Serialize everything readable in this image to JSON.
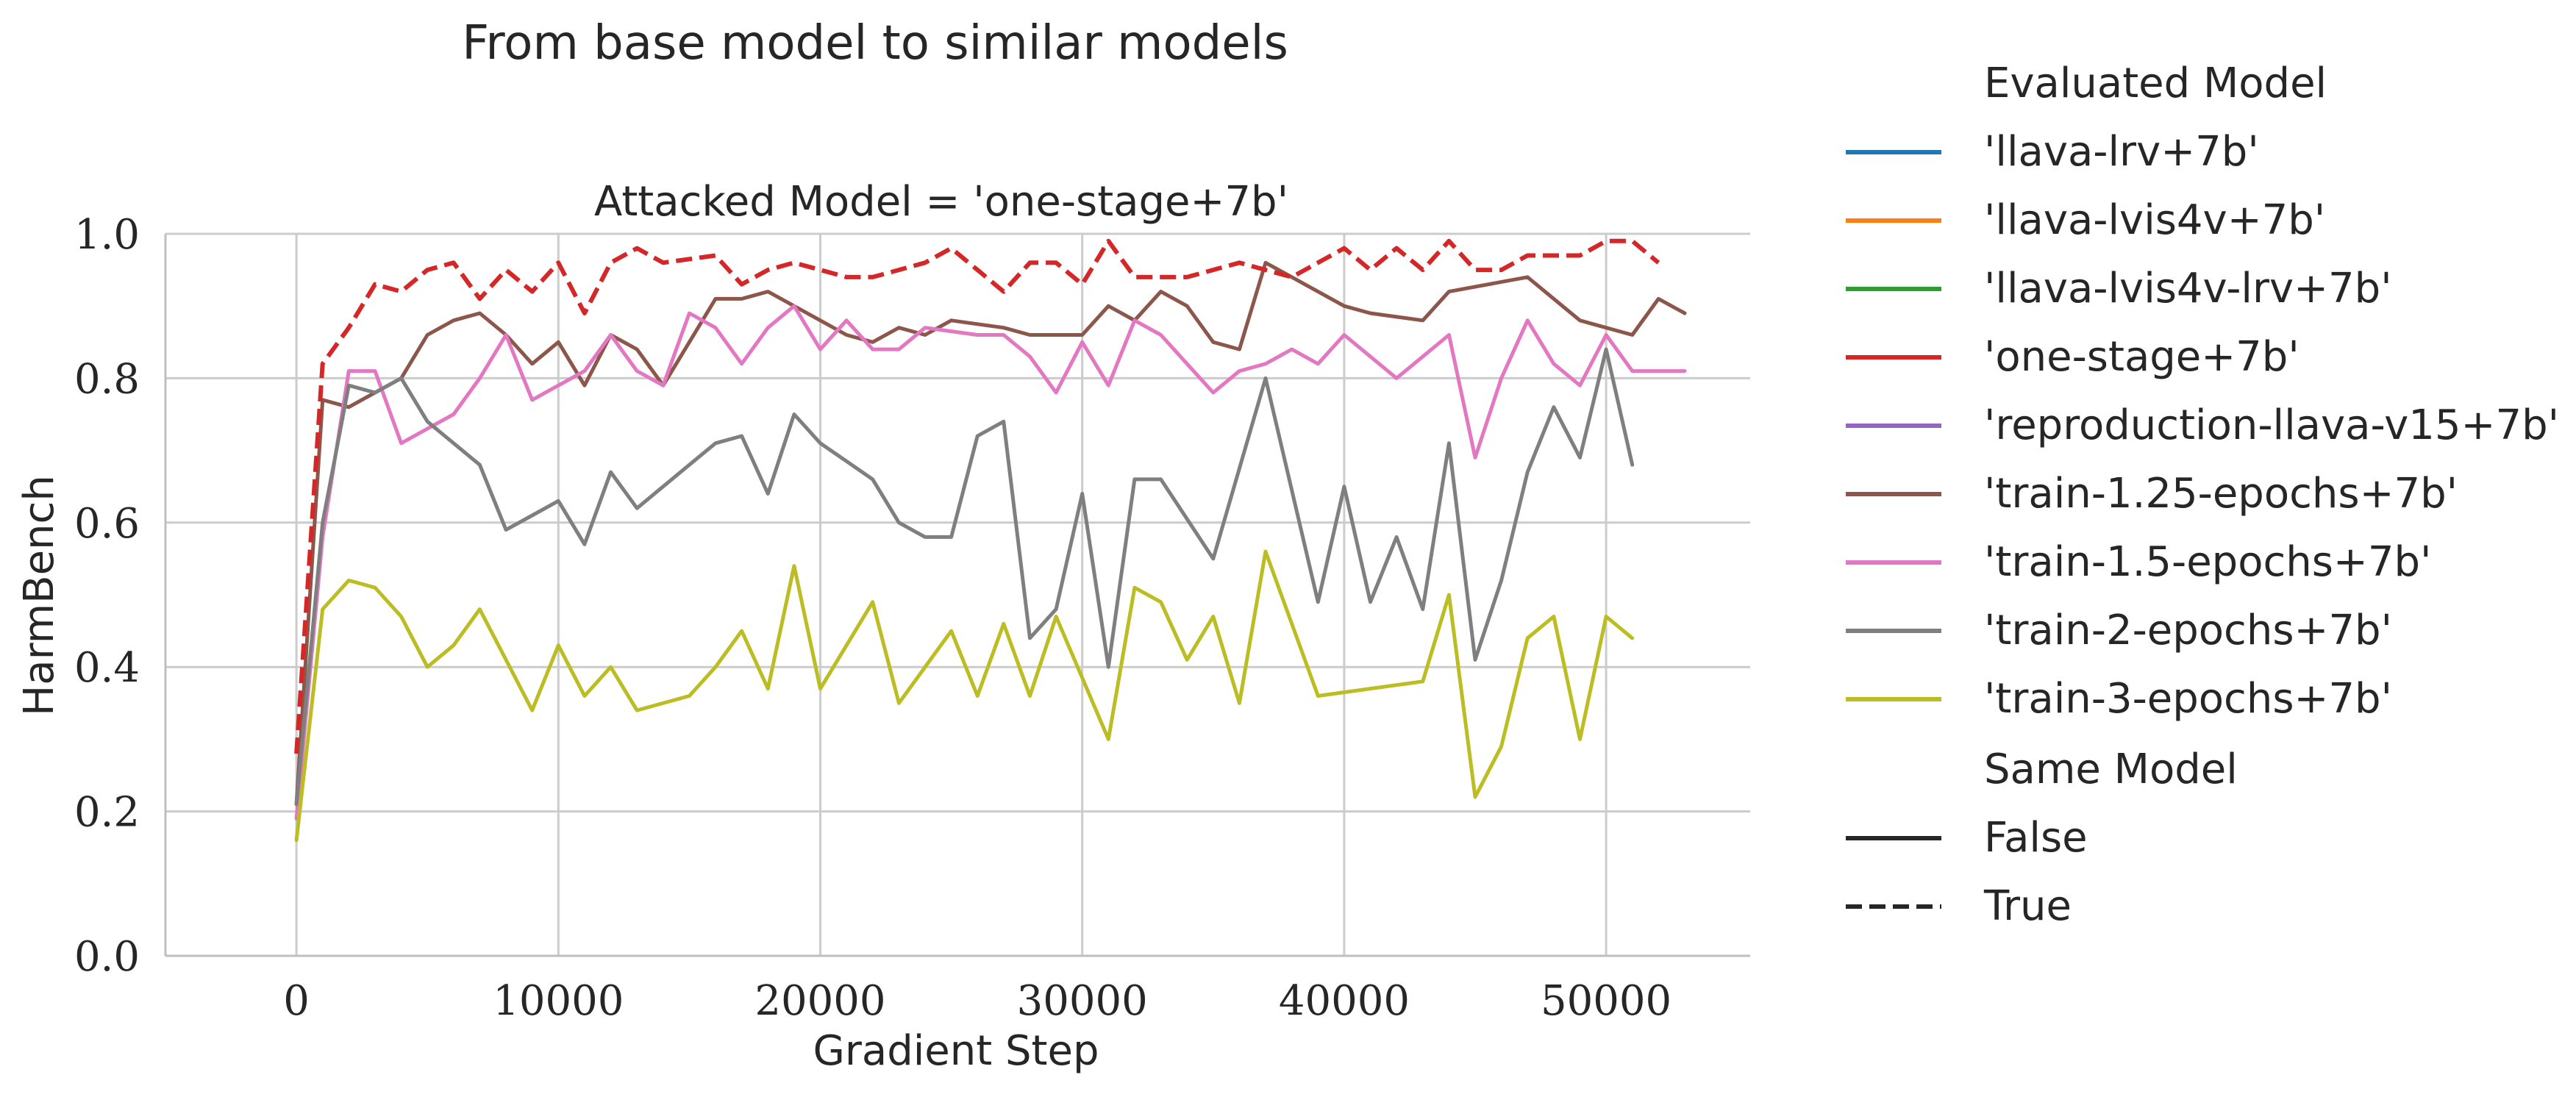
{
  "chart_data": {
    "type": "line",
    "title": "From base model to similar models",
    "subplot_title": "Attacked Model = 'one-stage+7b'",
    "xlabel": "Gradient Step",
    "ylabel": "HarmBench",
    "xlim": [
      -5000,
      55500
    ],
    "ylim": [
      0.0,
      1.0
    ],
    "xticks": [
      0,
      10000,
      20000,
      30000,
      40000,
      50000
    ],
    "yticks": [
      0.0,
      0.2,
      0.4,
      0.6,
      0.8,
      1.0
    ],
    "xtick_labels": [
      "0",
      "10000",
      "20000",
      "30000",
      "40000",
      "50000"
    ],
    "ytick_labels": [
      "0.0",
      "0.2",
      "0.4",
      "0.6",
      "0.8",
      "1.0"
    ],
    "grid": true,
    "legend_placement": "right, outside plot",
    "legend": {
      "hue_title": "Evaluated Model",
      "hue_entries": [
        {
          "label": "'llava-lrv+7b'",
          "color": "#1f77b4"
        },
        {
          "label": "'llava-lvis4v+7b'",
          "color": "#ff7f0e"
        },
        {
          "label": "'llava-lvis4v-lrv+7b'",
          "color": "#2ca02c"
        },
        {
          "label": "'one-stage+7b'",
          "color": "#d62728"
        },
        {
          "label": "'reproduction-llava-v15+7b'",
          "color": "#9467bd"
        },
        {
          "label": "'train-1.25-epochs+7b'",
          "color": "#8c564b"
        },
        {
          "label": "'train-1.5-epochs+7b'",
          "color": "#e377c2"
        },
        {
          "label": "'train-2-epochs+7b'",
          "color": "#7f7f7f"
        },
        {
          "label": "'train-3-epochs+7b'",
          "color": "#bcbd22"
        }
      ],
      "style_title": "Same Model",
      "style_entries": [
        {
          "label": "False",
          "dashed": false
        },
        {
          "label": "True",
          "dashed": true
        }
      ]
    },
    "series": [
      {
        "name": "'one-stage+7b'",
        "color": "#d62728",
        "dashed": true,
        "x": [
          0,
          1000,
          2000,
          3000,
          4000,
          5000,
          6000,
          7000,
          8000,
          9000,
          10000,
          11000,
          12000,
          13000,
          14000,
          15000,
          16000,
          17000,
          18000,
          19000,
          20000,
          21000,
          22000,
          23000,
          24000,
          25000,
          26000,
          27000,
          28000,
          29000,
          30000,
          31000,
          32000,
          33000,
          34000,
          35000,
          36000,
          37000,
          38000,
          39000,
          40000,
          41000,
          42000,
          43000,
          44000,
          45000,
          46000,
          47000,
          48000,
          49000,
          50000,
          51000,
          52000
        ],
        "y": [
          0.28,
          0.82,
          0.87,
          0.93,
          0.92,
          0.95,
          0.96,
          0.91,
          0.95,
          0.92,
          0.96,
          0.89,
          0.96,
          0.98,
          0.96,
          0.965,
          0.97,
          0.93,
          0.95,
          0.96,
          0.95,
          0.94,
          0.94,
          0.95,
          0.96,
          0.98,
          0.95,
          0.92,
          0.96,
          0.96,
          0.93,
          0.99,
          0.94,
          0.94,
          0.94,
          0.95,
          0.96,
          0.95,
          0.94,
          0.96,
          0.98,
          0.95,
          0.98,
          0.95,
          0.99,
          0.95,
          0.95,
          0.97,
          0.97,
          0.97,
          0.99,
          0.99,
          0.96
        ]
      },
      {
        "name": "'train-1.25-epochs+7b'",
        "color": "#8c564b",
        "dashed": false,
        "x": [
          0,
          1000,
          2000,
          3000,
          4000,
          5000,
          6000,
          7000,
          8000,
          9000,
          10000,
          11000,
          12000,
          13000,
          14000,
          15000,
          16000,
          17000,
          18000,
          19000,
          20000,
          21000,
          22000,
          23000,
          24000,
          25000,
          26000,
          27000,
          28000,
          29000,
          30000,
          31000,
          32000,
          33000,
          34000,
          35000,
          36000,
          37000,
          38000,
          39000,
          40000,
          41000,
          42000,
          43000,
          44000,
          47000,
          48000,
          49000,
          50000,
          51000,
          52000,
          53000
        ],
        "y": [
          0.21,
          0.77,
          0.76,
          0.78,
          0.8,
          0.86,
          0.88,
          0.89,
          0.86,
          0.82,
          0.85,
          0.79,
          0.86,
          0.84,
          0.79,
          0.85,
          0.91,
          0.91,
          0.92,
          0.9,
          0.88,
          0.86,
          0.85,
          0.87,
          0.86,
          0.88,
          0.875,
          0.87,
          0.86,
          0.86,
          0.86,
          0.9,
          0.88,
          0.92,
          0.9,
          0.85,
          0.84,
          0.96,
          0.94,
          0.92,
          0.9,
          0.89,
          0.885,
          0.88,
          0.92,
          0.94,
          0.91,
          0.88,
          0.87,
          0.86,
          0.91,
          0.89
        ]
      },
      {
        "name": "'train-1.5-epochs+7b'",
        "color": "#e377c2",
        "dashed": false,
        "x": [
          0,
          1000,
          2000,
          3000,
          4000,
          5000,
          6000,
          7000,
          8000,
          9000,
          10000,
          11000,
          12000,
          13000,
          14000,
          15000,
          16000,
          17000,
          18000,
          19000,
          20000,
          21000,
          22000,
          23000,
          24000,
          25000,
          26000,
          27000,
          28000,
          29000,
          30000,
          31000,
          32000,
          33000,
          34000,
          35000,
          36000,
          37000,
          38000,
          39000,
          40000,
          41000,
          42000,
          43000,
          44000,
          45000,
          46000,
          47000,
          48000,
          49000,
          50000,
          51000,
          52000,
          53000
        ],
        "y": [
          0.19,
          0.58,
          0.81,
          0.81,
          0.71,
          0.73,
          0.75,
          0.8,
          0.86,
          0.77,
          0.79,
          0.81,
          0.86,
          0.81,
          0.79,
          0.89,
          0.87,
          0.82,
          0.87,
          0.9,
          0.84,
          0.88,
          0.84,
          0.84,
          0.87,
          0.865,
          0.86,
          0.86,
          0.83,
          0.78,
          0.85,
          0.79,
          0.88,
          0.86,
          0.82,
          0.78,
          0.81,
          0.82,
          0.84,
          0.82,
          0.86,
          0.83,
          0.8,
          0.83,
          0.86,
          0.69,
          0.8,
          0.88,
          0.82,
          0.79,
          0.86,
          0.81,
          0.81,
          0.81
        ]
      },
      {
        "name": "'train-2-epochs+7b'",
        "color": "#7f7f7f",
        "dashed": false,
        "x": [
          0,
          1000,
          2000,
          3000,
          4000,
          5000,
          6000,
          7000,
          8000,
          9000,
          10000,
          11000,
          12000,
          13000,
          14000,
          15000,
          16000,
          17000,
          18000,
          19000,
          20000,
          21000,
          22000,
          23000,
          24000,
          25000,
          26000,
          27000,
          28000,
          29000,
          30000,
          31000,
          32000,
          33000,
          35000,
          37000,
          39000,
          40000,
          41000,
          42000,
          43000,
          44000,
          45000,
          46000,
          47000,
          48000,
          49000,
          50000,
          51000
        ],
        "y": [
          0.21,
          0.6,
          0.79,
          0.78,
          0.8,
          0.74,
          0.71,
          0.68,
          0.59,
          0.61,
          0.63,
          0.57,
          0.67,
          0.62,
          0.65,
          0.68,
          0.71,
          0.72,
          0.64,
          0.75,
          0.71,
          0.685,
          0.66,
          0.6,
          0.58,
          0.58,
          0.72,
          0.74,
          0.44,
          0.48,
          0.64,
          0.4,
          0.66,
          0.66,
          0.55,
          0.8,
          0.49,
          0.65,
          0.49,
          0.58,
          0.48,
          0.71,
          0.41,
          0.52,
          0.67,
          0.76,
          0.69,
          0.84,
          0.68
        ]
      },
      {
        "name": "'train-3-epochs+7b'",
        "color": "#bcbd22",
        "dashed": false,
        "x": [
          0,
          1000,
          2000,
          3000,
          4000,
          5000,
          6000,
          7000,
          8000,
          9000,
          10000,
          11000,
          12000,
          13000,
          15000,
          16000,
          17000,
          18000,
          19000,
          20000,
          22000,
          23000,
          25000,
          26000,
          27000,
          28000,
          29000,
          31000,
          32000,
          33000,
          34000,
          35000,
          36000,
          37000,
          39000,
          43000,
          44000,
          45000,
          46000,
          47000,
          48000,
          49000,
          50000,
          51000
        ],
        "y": [
          0.16,
          0.48,
          0.52,
          0.51,
          0.47,
          0.4,
          0.43,
          0.48,
          0.41,
          0.34,
          0.43,
          0.36,
          0.4,
          0.34,
          0.36,
          0.4,
          0.45,
          0.37,
          0.54,
          0.37,
          0.49,
          0.35,
          0.45,
          0.36,
          0.46,
          0.36,
          0.47,
          0.3,
          0.51,
          0.49,
          0.41,
          0.47,
          0.35,
          0.56,
          0.36,
          0.38,
          0.5,
          0.22,
          0.29,
          0.44,
          0.47,
          0.3,
          0.47,
          0.44
        ]
      }
    ]
  }
}
